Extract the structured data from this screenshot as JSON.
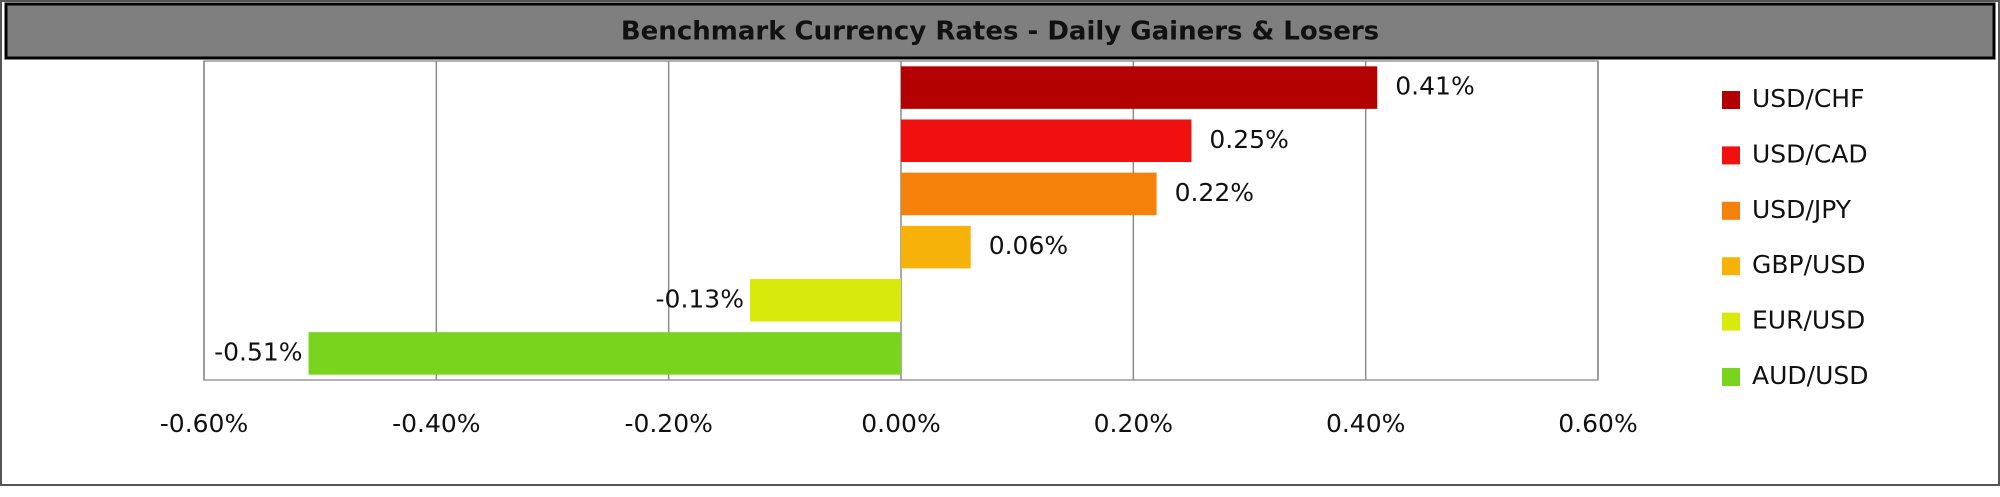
{
  "chart_data": {
    "type": "bar",
    "orientation": "horizontal",
    "title": "Benchmark Currency Rates - Daily Gainers & Losers",
    "series": [
      {
        "name": "USD/CHF",
        "color": "#b30000",
        "values": [
          0.41
        ],
        "value_labels": [
          "0.41%"
        ]
      },
      {
        "name": "USD/CAD",
        "color": "#f01010",
        "values": [
          0.25
        ],
        "value_labels": [
          "0.25%"
        ]
      },
      {
        "name": "USD/JPY",
        "color": "#f5800a",
        "values": [
          0.22
        ],
        "value_labels": [
          "0.22%"
        ]
      },
      {
        "name": "GBP/USD",
        "color": "#f7b20a",
        "values": [
          0.06
        ],
        "value_labels": [
          "0.06%"
        ]
      },
      {
        "name": "EUR/USD",
        "color": "#d8ea0c",
        "values": [
          -0.13
        ],
        "value_labels": [
          "-0.13%"
        ]
      },
      {
        "name": "AUD/USD",
        "color": "#78d41c",
        "values": [
          -0.51
        ],
        "value_labels": [
          "-0.51%"
        ]
      }
    ],
    "xlim": [
      -0.6,
      0.6
    ],
    "xticks": [
      {
        "value": -0.6,
        "label": "-0.60%"
      },
      {
        "value": -0.4,
        "label": "-0.40%"
      },
      {
        "value": -0.2,
        "label": "-0.20%"
      },
      {
        "value": 0,
        "label": "0.00%"
      },
      {
        "value": 0.2,
        "label": "0.20%"
      },
      {
        "value": 0.4,
        "label": "0.40%"
      },
      {
        "value": 0.6,
        "label": "0.60%"
      }
    ],
    "grid": true,
    "legend": "right"
  }
}
